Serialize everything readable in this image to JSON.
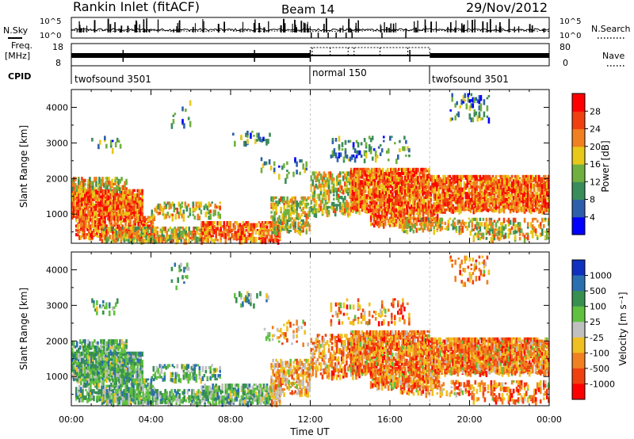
{
  "header": {
    "title": "Rankin Inlet (fitACF)",
    "beam": "Beam 14",
    "date": "29/Nov/2012"
  },
  "noise_panel": {
    "left_label": "N.Sky",
    "right_label": "N.Search",
    "left_ticks": [
      "10^5",
      "10^0"
    ],
    "right_ticks": [
      "10^5",
      "10^0"
    ]
  },
  "freq_panel": {
    "label_line1": "Freq.",
    "label_line2": "[MHz]",
    "left_ticks": [
      "18",
      "8"
    ],
    "right_ticks": [
      "80",
      "0"
    ],
    "right_label": "Nave"
  },
  "cpid": {
    "label": "CPID",
    "segments": [
      {
        "text": "twofsound 3501",
        "start_hour": 0
      },
      {
        "text": "normal 150",
        "start_hour": 12
      },
      {
        "text": "twofsound 3501",
        "start_hour": 18
      }
    ]
  },
  "chart_data": [
    {
      "type": "heatmap",
      "name": "power",
      "ylabel": "Slant Range [km]",
      "ylim": [
        180,
        4500
      ],
      "y_ticks": [
        1000,
        2000,
        3000,
        4000
      ],
      "xlim_hours": [
        0,
        24
      ],
      "colorbar": {
        "label": "Power [dB]",
        "ticks": [
          "4",
          "8",
          "12",
          "16",
          "20",
          "24",
          "28"
        ],
        "colors": [
          "#0000ff",
          "#2d5faa",
          "#3a8c5a",
          "#70b040",
          "#e8c818",
          "#f08020",
          "#f04010",
          "#ff0000"
        ]
      }
    },
    {
      "type": "heatmap",
      "name": "velocity",
      "ylabel": "Slant Range [km]",
      "ylim": [
        180,
        4500
      ],
      "y_ticks": [
        1000,
        2000,
        3000,
        4000
      ],
      "xlim_hours": [
        0,
        24
      ],
      "xlabel": "Time UT",
      "x_ticks": [
        "00:00",
        "04:00",
        "08:00",
        "12:00",
        "16:00",
        "20:00",
        "00:00"
      ],
      "colorbar": {
        "label": "Velocity  [m s⁻¹]",
        "ticks": [
          "1000",
          "500",
          "100",
          "25",
          "-25",
          "-100",
          "-500",
          "-1000"
        ],
        "colors": [
          "#1030c0",
          "#2a70b0",
          "#389050",
          "#60c040",
          "#c0c0c0",
          "#f0c020",
          "#f08020",
          "#f04010",
          "#ff0000"
        ]
      }
    }
  ]
}
